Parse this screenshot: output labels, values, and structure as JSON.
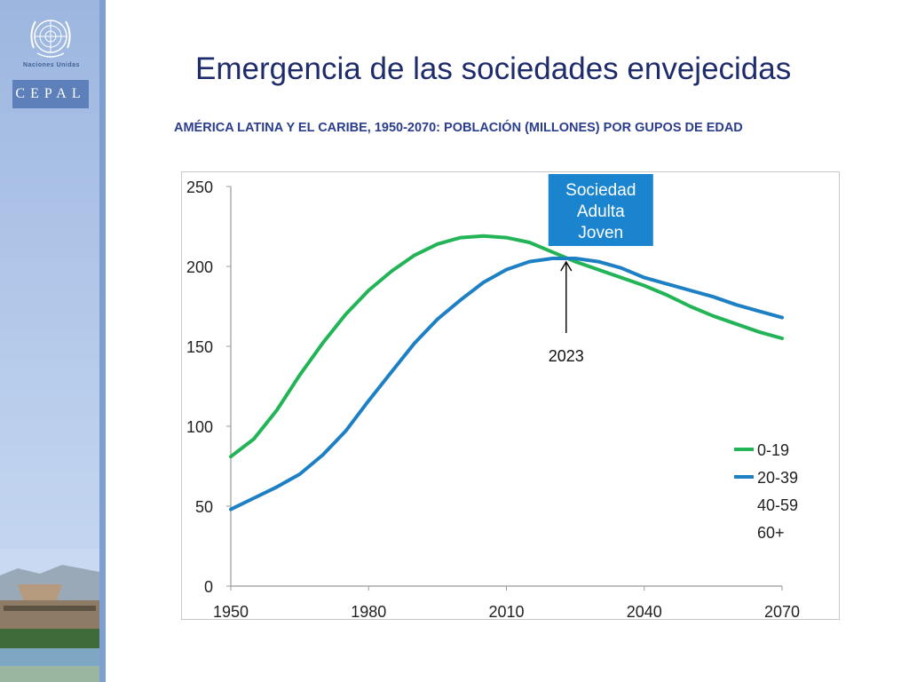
{
  "slide": {
    "title": "Emergencia de las sociedades envejecidas",
    "subtitle": "AMÉRICA LATINA Y EL CARIBE, 1950-2070: POBLACIÓN (MILLONES) POR GUPOS DE EDAD"
  },
  "branding": {
    "un_name": "Naciones Unidas",
    "org": "CEPAL",
    "accent_color": "#5d80ba"
  },
  "chart_data": {
    "type": "line",
    "title": "",
    "xlabel": "",
    "ylabel": "",
    "xlim": [
      1950,
      2070
    ],
    "ylim": [
      0,
      250
    ],
    "x_ticks": [
      "1950",
      "1980",
      "2010",
      "2040",
      "2070"
    ],
    "y_ticks": [
      "0",
      "50",
      "100",
      "150",
      "200",
      "250"
    ],
    "grid": false,
    "legend_position": "bottom-right",
    "series": [
      {
        "name": "0-19",
        "color": "#22b457",
        "points": [
          [
            1950,
            81
          ],
          [
            1955,
            92
          ],
          [
            1960,
            110
          ],
          [
            1965,
            132
          ],
          [
            1970,
            152
          ],
          [
            1975,
            170
          ],
          [
            1980,
            185
          ],
          [
            1985,
            197
          ],
          [
            1990,
            207
          ],
          [
            1995,
            214
          ],
          [
            2000,
            218
          ],
          [
            2005,
            219
          ],
          [
            2010,
            218
          ],
          [
            2015,
            215
          ],
          [
            2020,
            209
          ],
          [
            2025,
            203
          ],
          [
            2030,
            198
          ],
          [
            2035,
            193
          ],
          [
            2040,
            188
          ],
          [
            2045,
            182
          ],
          [
            2050,
            175
          ],
          [
            2055,
            169
          ],
          [
            2060,
            164
          ],
          [
            2065,
            159
          ],
          [
            2070,
            155
          ]
        ]
      },
      {
        "name": "20-39",
        "color": "#1d80c4",
        "points": [
          [
            1950,
            48
          ],
          [
            1955,
            55
          ],
          [
            1960,
            62
          ],
          [
            1965,
            70
          ],
          [
            1970,
            82
          ],
          [
            1975,
            97
          ],
          [
            1980,
            116
          ],
          [
            1985,
            134
          ],
          [
            1990,
            152
          ],
          [
            1995,
            167
          ],
          [
            2000,
            179
          ],
          [
            2005,
            190
          ],
          [
            2010,
            198
          ],
          [
            2015,
            203
          ],
          [
            2020,
            205
          ],
          [
            2025,
            205
          ],
          [
            2030,
            203
          ],
          [
            2035,
            199
          ],
          [
            2040,
            193
          ],
          [
            2045,
            189
          ],
          [
            2050,
            185
          ],
          [
            2055,
            181
          ],
          [
            2060,
            176
          ],
          [
            2065,
            172
          ],
          [
            2070,
            168
          ]
        ]
      },
      {
        "name": "40-59",
        "color": "#ffffff",
        "points": []
      },
      {
        "name": "60+",
        "color": "#ffffff",
        "points": []
      }
    ],
    "annotations": [
      {
        "type": "box",
        "text": [
          "Sociedad",
          "Adulta",
          "Joven"
        ],
        "color": "#1a84cf",
        "x": 2023
      },
      {
        "type": "arrow",
        "text": "2023",
        "x": 2023,
        "y": 205
      }
    ]
  }
}
